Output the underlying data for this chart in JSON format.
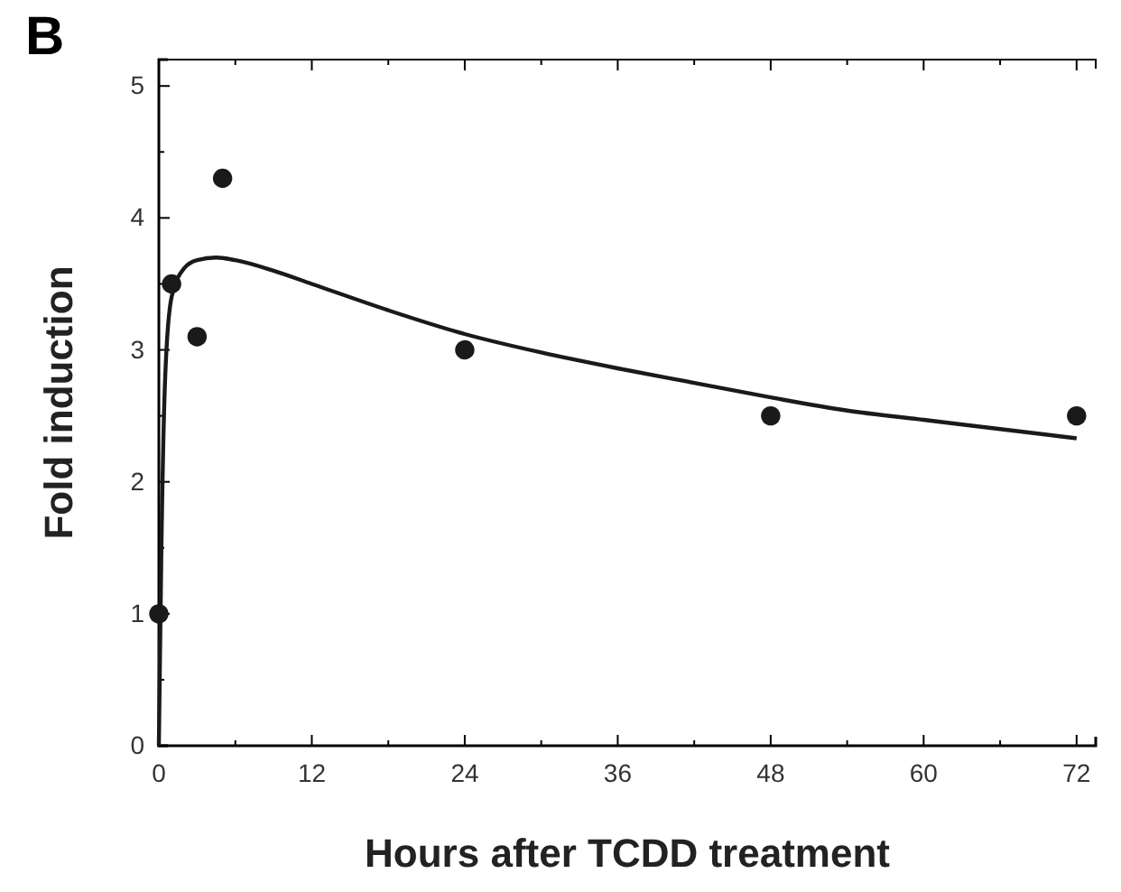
{
  "chart_data": {
    "type": "scatter",
    "title": "B",
    "xlabel": "Hours after TCDD treatment",
    "ylabel": "Fold induction",
    "xlim": [
      0,
      73.5
    ],
    "ylim": [
      0,
      5.2
    ],
    "xticks": [
      0,
      {
        "value": 6,
        "label": null
      },
      12,
      {
        "value": 18,
        "label": null
      },
      24,
      {
        "value": 30,
        "label": null
      },
      36,
      {
        "value": 42,
        "label": null
      },
      48,
      {
        "value": 54,
        "label": null
      },
      60,
      {
        "value": 66,
        "label": null
      },
      72
    ],
    "yticks": [
      0,
      {
        "value": 0.5,
        "label": null
      },
      1,
      {
        "value": 1.5,
        "label": null
      },
      2,
      {
        "value": 2.5,
        "label": null
      },
      3,
      {
        "value": 3.5,
        "label": null
      },
      4,
      {
        "value": 4.5,
        "label": null
      },
      5
    ],
    "grid": false,
    "series": [
      {
        "color": "#1a1a1a",
        "marker": "circle",
        "x": [
          0,
          1,
          3,
          5,
          24,
          48,
          72
        ],
        "values": [
          1.0,
          3.5,
          3.1,
          4.3,
          3.0,
          2.5,
          2.5
        ]
      },
      {
        "type": "line",
        "color": "#1a1a1a",
        "line_style": "solid",
        "x": [
          0,
          0.2,
          0.5,
          1,
          2,
          3,
          4.5,
          6,
          9,
          12,
          18,
          24,
          30,
          36,
          42,
          48,
          54,
          60,
          66,
          72
        ],
        "values": [
          0,
          1.5,
          2.8,
          3.4,
          3.62,
          3.68,
          3.7,
          3.68,
          3.6,
          3.5,
          3.3,
          3.12,
          2.98,
          2.86,
          2.75,
          2.64,
          2.54,
          2.47,
          2.4,
          2.33
        ]
      }
    ]
  }
}
